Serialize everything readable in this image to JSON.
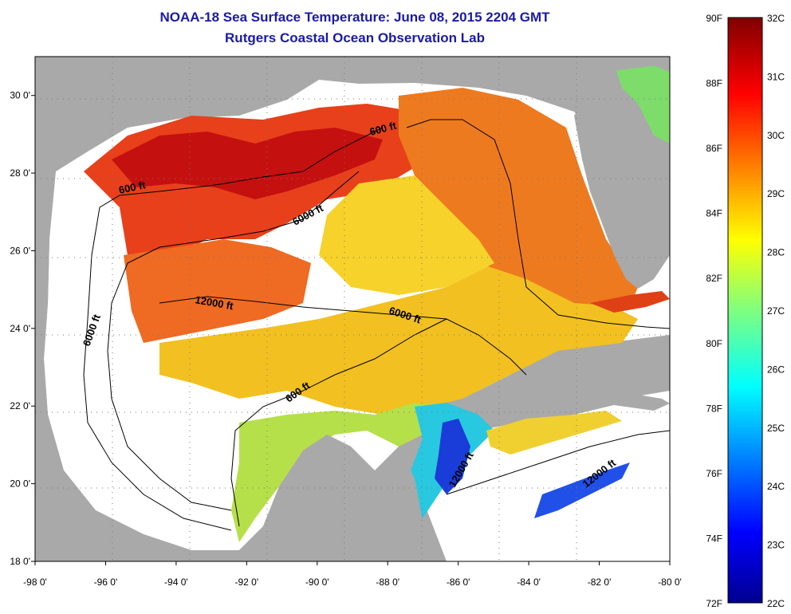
{
  "title": "NOAA-18 Sea Surface Temperature:  June 08, 2015 2204 GMT",
  "subtitle": "Rutgers Coastal Ocean Observation Lab",
  "map": {
    "lon_ticks": [
      "-98 0'",
      "-96 0'",
      "-94 0'",
      "-92 0'",
      "-90 0'",
      "-88 0'",
      "-86 0'",
      "-84 0'",
      "-82 0'",
      "-80 0'"
    ],
    "lat_ticks": [
      "30 0'",
      "28 0'",
      "26 0'",
      "24 0'",
      "22 0'",
      "20 0'",
      "18 0'"
    ],
    "contour_labels": [
      "600 ft",
      "600 ft",
      "6000 ft",
      "6000 ft",
      "6000 ft",
      "12000 ft",
      "600 ft",
      "12000 ft",
      "12000 ft"
    ],
    "colors": {
      "land": "#a9a9a9",
      "cloud": "#ffffff"
    }
  },
  "colorbar": {
    "f_labels": [
      "90F",
      "88F",
      "86F",
      "84F",
      "82F",
      "80F",
      "78F",
      "76F",
      "74F",
      "72F"
    ],
    "c_labels": [
      "32C",
      "31C",
      "30C",
      "29C",
      "28C",
      "27C",
      "26C",
      "25C",
      "24C",
      "23C",
      "22C"
    ],
    "f_values": [
      90,
      88,
      86,
      84,
      82,
      80,
      78,
      76,
      74,
      72
    ],
    "c_values": [
      32,
      31,
      30,
      29,
      28,
      27,
      26,
      25,
      24,
      23,
      22
    ]
  }
}
